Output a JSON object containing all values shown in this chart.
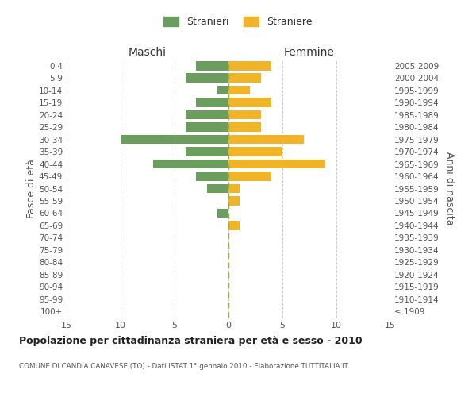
{
  "age_groups": [
    "100+",
    "95-99",
    "90-94",
    "85-89",
    "80-84",
    "75-79",
    "70-74",
    "65-69",
    "60-64",
    "55-59",
    "50-54",
    "45-49",
    "40-44",
    "35-39",
    "30-34",
    "25-29",
    "20-24",
    "15-19",
    "10-14",
    "5-9",
    "0-4"
  ],
  "birth_years": [
    "≤ 1909",
    "1910-1914",
    "1915-1919",
    "1920-1924",
    "1925-1929",
    "1930-1934",
    "1935-1939",
    "1940-1944",
    "1945-1949",
    "1950-1954",
    "1955-1959",
    "1960-1964",
    "1965-1969",
    "1970-1974",
    "1975-1979",
    "1980-1984",
    "1985-1989",
    "1990-1994",
    "1995-1999",
    "2000-2004",
    "2005-2009"
  ],
  "maschi": [
    0,
    0,
    0,
    0,
    0,
    0,
    0,
    0,
    1,
    0,
    2,
    3,
    7,
    4,
    10,
    4,
    4,
    3,
    1,
    4,
    3
  ],
  "femmine": [
    0,
    0,
    0,
    0,
    0,
    0,
    0,
    1,
    0,
    1,
    1,
    4,
    9,
    5,
    7,
    3,
    3,
    4,
    2,
    3,
    4
  ],
  "maschi_color": "#6b9e5e",
  "femmine_color": "#f0b429",
  "bg_color": "#ffffff",
  "grid_color": "#cccccc",
  "title": "Popolazione per cittadinanza straniera per età e sesso - 2010",
  "subtitle": "COMUNE DI CANDIA CANAVESE (TO) - Dati ISTAT 1° gennaio 2010 - Elaborazione TUTTITALIA.IT",
  "ylabel_left": "Fasce di età",
  "ylabel_right": "Anni di nascita",
  "legend_maschi": "Stranieri",
  "legend_femmine": "Straniere",
  "xlim": 15,
  "maschi_header": "Maschi",
  "femmine_header": "Femmine"
}
